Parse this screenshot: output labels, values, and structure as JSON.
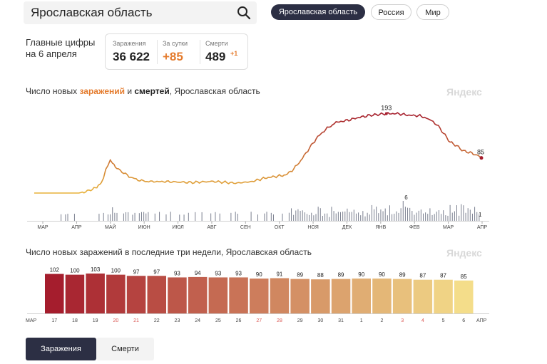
{
  "search": {
    "value": "Ярославская область"
  },
  "regions": {
    "active": "Ярославская область",
    "russia": "Россия",
    "world": "Мир"
  },
  "headline": {
    "label": "Главные цифры на 6 апреля",
    "infections_label": "Заражения",
    "infections_value": "36 622",
    "daily_label": "За сутки",
    "daily_value": "+85",
    "deaths_label": "Смерти",
    "deaths_value": "489",
    "deaths_delta": "+1"
  },
  "colors": {
    "accent": "#e47b2d",
    "dark": "#2c2f44",
    "bars_high": "#a51d2d",
    "bars_low": "#f4dd8a"
  },
  "chart1": {
    "title_pre": "Число новых ",
    "title_infections": "заражений",
    "title_mid": " и ",
    "title_deaths": "смертей",
    "title_post": ", Ярославская область",
    "watermark": "Яндекс"
  },
  "chart2": {
    "title": "Число новых заражений в последние три недели, Ярославская область",
    "watermark": "Яндекс"
  },
  "tabs": {
    "infections": "Заражения",
    "deaths": "Смерти"
  },
  "chart_data": [
    {
      "type": "line",
      "title": "Число новых заражений и смертей, Ярославская область",
      "x_ticks": [
        "МАР",
        "АПР",
        "МАЙ",
        "ИЮН",
        "ИЮЛ",
        "АВГ",
        "СЕН",
        "ОКТ",
        "НОЯ",
        "ДЕК",
        "ЯНВ",
        "ФЕВ",
        "МАР",
        "АПР"
      ],
      "series": [
        {
          "name": "заражения",
          "color_gradient": [
            "#e8b23a",
            "#a51d2d"
          ],
          "points": [
            [
              0,
              0
            ],
            [
              40,
              0
            ],
            [
              46,
              3
            ],
            [
              52,
              8
            ],
            [
              56,
              12
            ],
            [
              60,
              25
            ],
            [
              62,
              40
            ],
            [
              64,
              55
            ],
            [
              66,
              70
            ],
            [
              68,
              80
            ],
            [
              70,
              72
            ],
            [
              74,
              60
            ],
            [
              80,
              50
            ],
            [
              88,
              38
            ],
            [
              96,
              30
            ],
            [
              104,
              26
            ],
            [
              120,
              27
            ],
            [
              140,
              27
            ],
            [
              160,
              26
            ],
            [
              180,
              26
            ],
            [
              195,
              30
            ],
            [
              205,
              35
            ],
            [
              215,
              38
            ],
            [
              225,
              45
            ],
            [
              232,
              60
            ],
            [
              240,
              85
            ],
            [
              248,
              115
            ],
            [
              255,
              140
            ],
            [
              262,
              158
            ],
            [
              270,
              170
            ],
            [
              280,
              178
            ],
            [
              290,
              182
            ],
            [
              300,
              186
            ],
            [
              315,
              190
            ],
            [
              325,
              193
            ],
            [
              335,
              190
            ],
            [
              345,
              185
            ],
            [
              352,
              178
            ],
            [
              360,
              165
            ],
            [
              366,
              145
            ],
            [
              372,
              125
            ],
            [
              378,
              112
            ],
            [
              384,
              103
            ],
            [
              390,
              98
            ],
            [
              397,
              90
            ],
            [
              400,
              85
            ]
          ],
          "peak_label": "193",
          "end_label": "85"
        },
        {
          "name": "смерти",
          "color": "#7a7f8f",
          "max_label": "6",
          "end_label": "1"
        }
      ]
    },
    {
      "type": "bar",
      "title": "Число новых заражений в последние три недели, Ярославская область",
      "categories": [
        "17",
        "18",
        "19",
        "20",
        "21",
        "22",
        "23",
        "24",
        "25",
        "26",
        "27",
        "28",
        "29",
        "30",
        "31",
        "1",
        "2",
        "3",
        "4",
        "5",
        "6"
      ],
      "weekend_categories": [
        "20",
        "21",
        "27",
        "28",
        "3",
        "4"
      ],
      "values": [
        102,
        100,
        103,
        100,
        97,
        97,
        93,
        94,
        93,
        93,
        90,
        91,
        89,
        88,
        89,
        90,
        90,
        89,
        87,
        87,
        85
      ],
      "month_start": "МАР",
      "month_end": "АПР"
    }
  ]
}
